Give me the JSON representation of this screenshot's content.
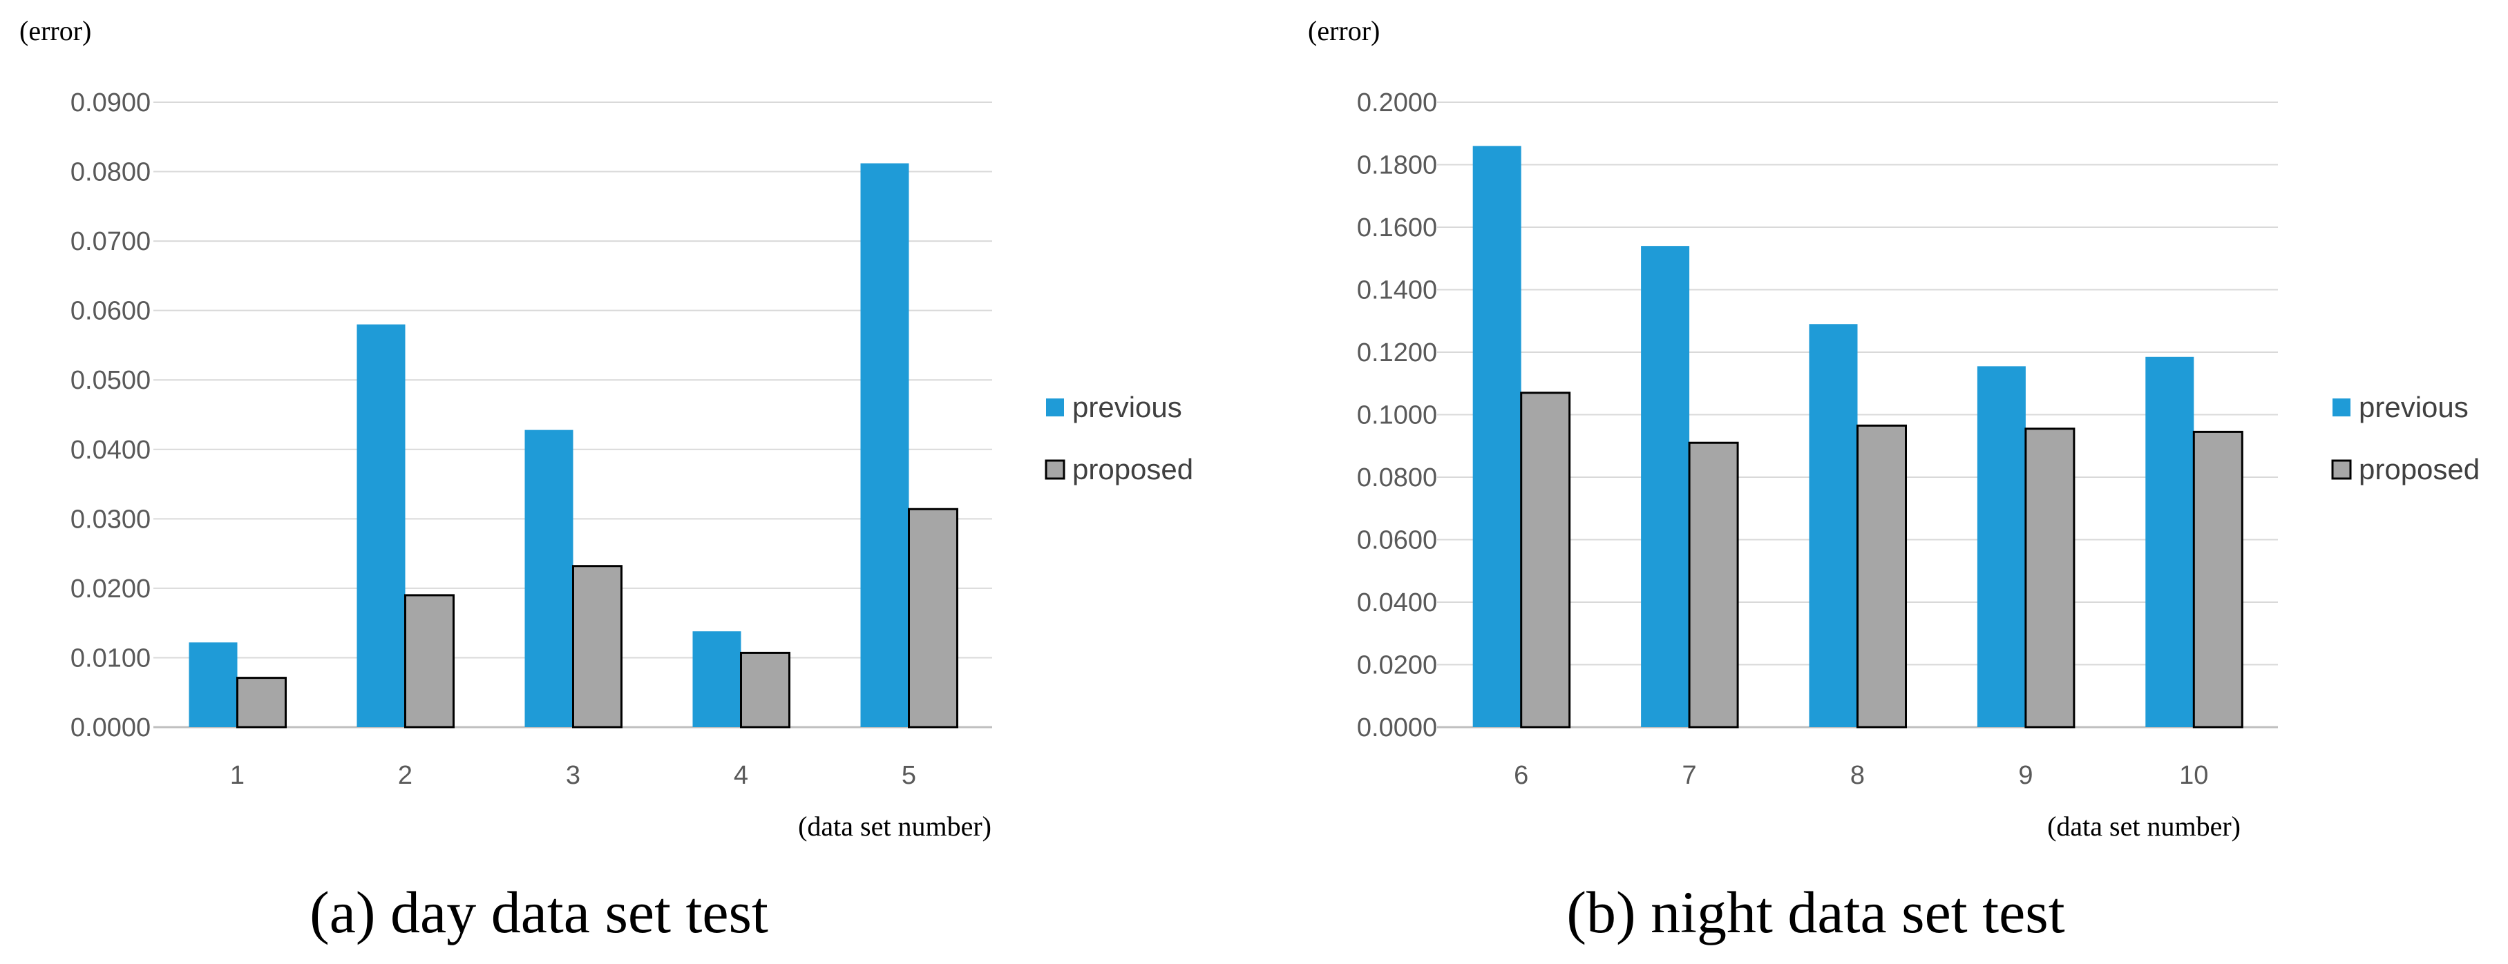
{
  "legend": {
    "series": [
      {
        "name": "previous",
        "color": "#1F9BD7"
      },
      {
        "name": "proposed",
        "color": "#A6A6A6"
      }
    ]
  },
  "chart_data": [
    {
      "type": "bar",
      "caption": "(a) day data set test",
      "ylabel": "(error)",
      "xlabel": "(data set number)",
      "categories": [
        "1",
        "2",
        "3",
        "4",
        "5"
      ],
      "ylim": [
        0,
        0.09
      ],
      "yticks": [
        "0.0000",
        "0.0100",
        "0.0200",
        "0.0300",
        "0.0400",
        "0.0500",
        "0.0600",
        "0.0700",
        "0.0800",
        "0.0900"
      ],
      "series": [
        {
          "name": "previous",
          "values": [
            0.0122,
            0.058,
            0.0428,
            0.0138,
            0.0812
          ]
        },
        {
          "name": "proposed",
          "values": [
            0.0071,
            0.019,
            0.0232,
            0.0107,
            0.0314
          ]
        }
      ],
      "legend_position": "right",
      "grid": true
    },
    {
      "type": "bar",
      "caption": "(b) night data set test",
      "ylabel": "(error)",
      "xlabel": "(data set number)",
      "categories": [
        "6",
        "7",
        "8",
        "9",
        "10"
      ],
      "ylim": [
        0,
        0.2
      ],
      "yticks": [
        "0.0000",
        "0.0200",
        "0.0400",
        "0.0600",
        "0.0800",
        "0.1000",
        "0.1200",
        "0.1400",
        "0.1600",
        "0.1800",
        "0.2000"
      ],
      "series": [
        {
          "name": "previous",
          "values": [
            0.186,
            0.154,
            0.129,
            0.1155,
            0.1185
          ]
        },
        {
          "name": "proposed",
          "values": [
            0.107,
            0.091,
            0.0965,
            0.0955,
            0.0945
          ]
        }
      ],
      "legend_position": "right",
      "grid": true
    }
  ]
}
